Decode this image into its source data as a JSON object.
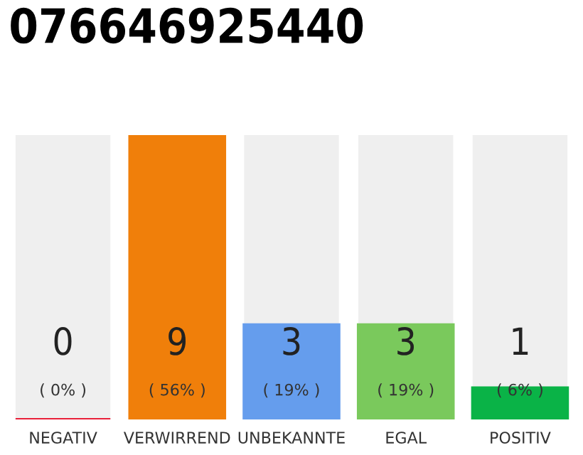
{
  "chart_data": {
    "type": "bar",
    "title": "076646925440",
    "categories": [
      "NEGATIV",
      "VERWIRREND",
      "UNBEKANNTE",
      "EGAL",
      "POSITIV"
    ],
    "values": [
      0,
      9,
      3,
      3,
      1
    ],
    "colors": [
      "#e8203a",
      "#f07f0a",
      "#659ded",
      "#7ac95c",
      "#0ab347"
    ],
    "value_labels": [
      "0\n( 0% )",
      "9\n( 56% )",
      "3\n( 19% )",
      "3\n( 19% )",
      "1\n( 6% )"
    ],
    "grid": false,
    "legend": false
  }
}
